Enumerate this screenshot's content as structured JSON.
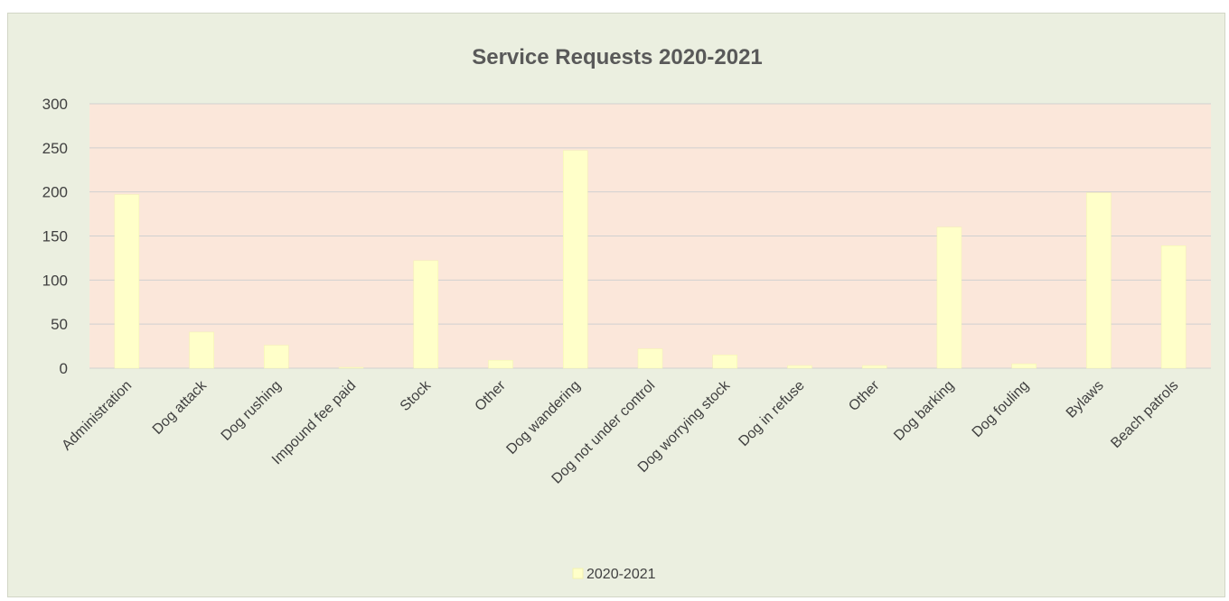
{
  "chart_data": {
    "type": "bar",
    "title": "Service Requests 2020-2021",
    "xlabel": "",
    "ylabel": "",
    "ylim": [
      0,
      300
    ],
    "yticks": [
      0,
      50,
      100,
      150,
      200,
      250,
      300
    ],
    "grid": true,
    "legend_position": "bottom",
    "categories": [
      "Administration",
      "Dog attack",
      "Dog rushing",
      "Impound fee paid",
      "Stock",
      "Other",
      "Dog wandering",
      "Dog not under control",
      "Dog worrying stock",
      "Dog in refuse",
      "Other",
      "Dog barking",
      "Dog fouling",
      "Bylaws",
      "Beach patrols"
    ],
    "series": [
      {
        "name": "2020-2021",
        "values": [
          197,
          41,
          26,
          1,
          122,
          9,
          247,
          22,
          15,
          3,
          3,
          160,
          5,
          199,
          139
        ]
      }
    ]
  },
  "colors": {
    "frame_background": "#ebefe0",
    "plot_background": "#fbe7da",
    "bar_fill": "#ffffc9",
    "bar_stroke": "#f3f3b0",
    "gridline": "#d0d0d0",
    "text": "#404040",
    "title": "#595959"
  }
}
